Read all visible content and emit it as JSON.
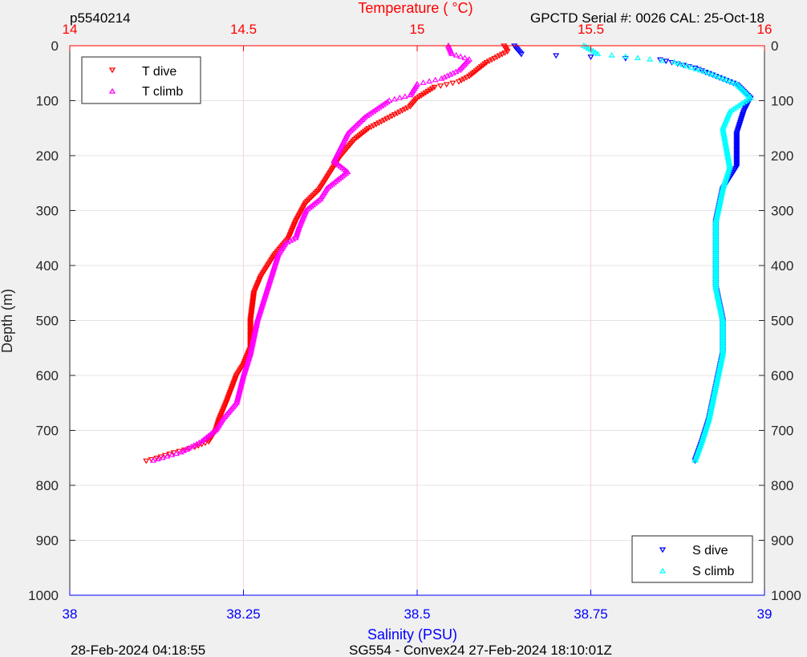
{
  "header": {
    "profile_id": "p5540214",
    "calibration": "GPCTD Serial #: 0026 CAL: 25-Oct-18"
  },
  "footer": {
    "left_timestamp": "28-Feb-2024 04:18:55",
    "mission": "SG554 - Convex24 27-Feb-2024 18:10:01Z"
  },
  "colors": {
    "background": "#f0f0f0",
    "plot_bg": "#ffffff",
    "t_dive": "#ff0000",
    "t_climb": "#ff00ff",
    "s_dive": "#0000ff",
    "s_climb": "#00ffff",
    "temp_axis": "#ff0000",
    "sal_axis": "#0000ff"
  },
  "chart_data": {
    "type": "line",
    "ylabel": "Depth (m)",
    "ylim": [
      1000,
      0
    ],
    "y_ticks": [
      "0",
      "100",
      "200",
      "300",
      "400",
      "500",
      "600",
      "700",
      "800",
      "900",
      "1000"
    ],
    "temp_axis": {
      "label": "Temperature (    °C)",
      "position": "top",
      "range": [
        14,
        16
      ],
      "ticks": [
        "14",
        "14.5",
        "15",
        "15.5",
        "16"
      ]
    },
    "sal_axis": {
      "label": "Salinity (PSU)",
      "position": "bottom",
      "range": [
        38,
        39
      ],
      "ticks": [
        "38",
        "38.25",
        "38.5",
        "38.75",
        "39"
      ]
    },
    "grid": true,
    "legends": [
      {
        "placement": "top-left",
        "entries": [
          {
            "name": "T dive",
            "marker": "triangle-down",
            "color": "#ff0000"
          },
          {
            "name": "T climb",
            "marker": "triangle-up",
            "color": "#ff00ff"
          }
        ]
      },
      {
        "placement": "bottom-right",
        "entries": [
          {
            "name": "S dive",
            "marker": "triangle-down",
            "color": "#0000ff"
          },
          {
            "name": "S climb",
            "marker": "triangle-up",
            "color": "#00ffff"
          }
        ]
      }
    ],
    "series": [
      {
        "name": "T dive",
        "axis": "temperature",
        "color": "#ff0000",
        "marker": "triangle-down",
        "x": [
          15.25,
          15.26,
          15.23,
          15.2,
          15.18,
          15.15,
          15.12,
          15.05,
          15.0,
          14.98,
          14.92,
          14.86,
          14.82,
          14.78,
          14.74,
          14.72,
          14.68,
          14.65,
          14.63,
          14.59,
          14.55,
          14.53,
          14.52,
          14.52,
          14.5,
          14.48,
          14.45,
          14.43,
          14.42,
          14.4,
          14.36,
          14.3,
          14.25,
          14.22
        ],
        "y": [
          0,
          10,
          20,
          30,
          40,
          55,
          65,
          75,
          95,
          110,
          130,
          150,
          170,
          200,
          240,
          260,
          285,
          320,
          350,
          380,
          420,
          450,
          500,
          550,
          580,
          600,
          650,
          680,
          700,
          720,
          730,
          740,
          750,
          755
        ]
      },
      {
        "name": "T climb",
        "axis": "temperature",
        "color": "#ff00ff",
        "marker": "triangle-up",
        "x": [
          15.09,
          15.1,
          15.15,
          15.12,
          15.07,
          15.0,
          14.98,
          14.92,
          14.85,
          14.8,
          14.78,
          14.76,
          14.8,
          14.78,
          14.74,
          14.72,
          14.68,
          14.66,
          14.65,
          14.62,
          14.6,
          14.58,
          14.56,
          14.54,
          14.52,
          14.5,
          14.48,
          14.44,
          14.42,
          14.38,
          14.32,
          14.24
        ],
        "y": [
          0,
          15,
          25,
          45,
          60,
          70,
          90,
          100,
          130,
          160,
          185,
          210,
          230,
          240,
          260,
          280,
          300,
          330,
          350,
          360,
          380,
          420,
          460,
          500,
          560,
          600,
          650,
          680,
          700,
          720,
          740,
          755
        ]
      },
      {
        "name": "S dive",
        "axis": "salinity",
        "color": "#0000ff",
        "marker": "triangle-down",
        "x": [
          38.64,
          38.65,
          38.75,
          38.85,
          38.9,
          38.93,
          38.96,
          38.98,
          38.97,
          38.96,
          38.96,
          38.94,
          38.93,
          38.93,
          38.93,
          38.94,
          38.94,
          38.93,
          38.92,
          38.91,
          38.9
        ],
        "y": [
          0,
          15,
          20,
          25,
          40,
          55,
          70,
          95,
          120,
          160,
          220,
          260,
          320,
          380,
          440,
          500,
          560,
          620,
          680,
          720,
          755
        ]
      },
      {
        "name": "S climb",
        "axis": "salinity",
        "color": "#00ffff",
        "marker": "triangle-up",
        "x": [
          38.74,
          38.76,
          38.8,
          38.87,
          38.92,
          38.96,
          38.98,
          38.95,
          38.94,
          38.95,
          38.94,
          38.93,
          38.93,
          38.93,
          38.94,
          38.94,
          38.93,
          38.92,
          38.91,
          38.9
        ],
        "y": [
          0,
          15,
          20,
          30,
          50,
          70,
          95,
          120,
          150,
          220,
          260,
          320,
          380,
          440,
          500,
          560,
          620,
          680,
          720,
          755
        ]
      }
    ]
  }
}
